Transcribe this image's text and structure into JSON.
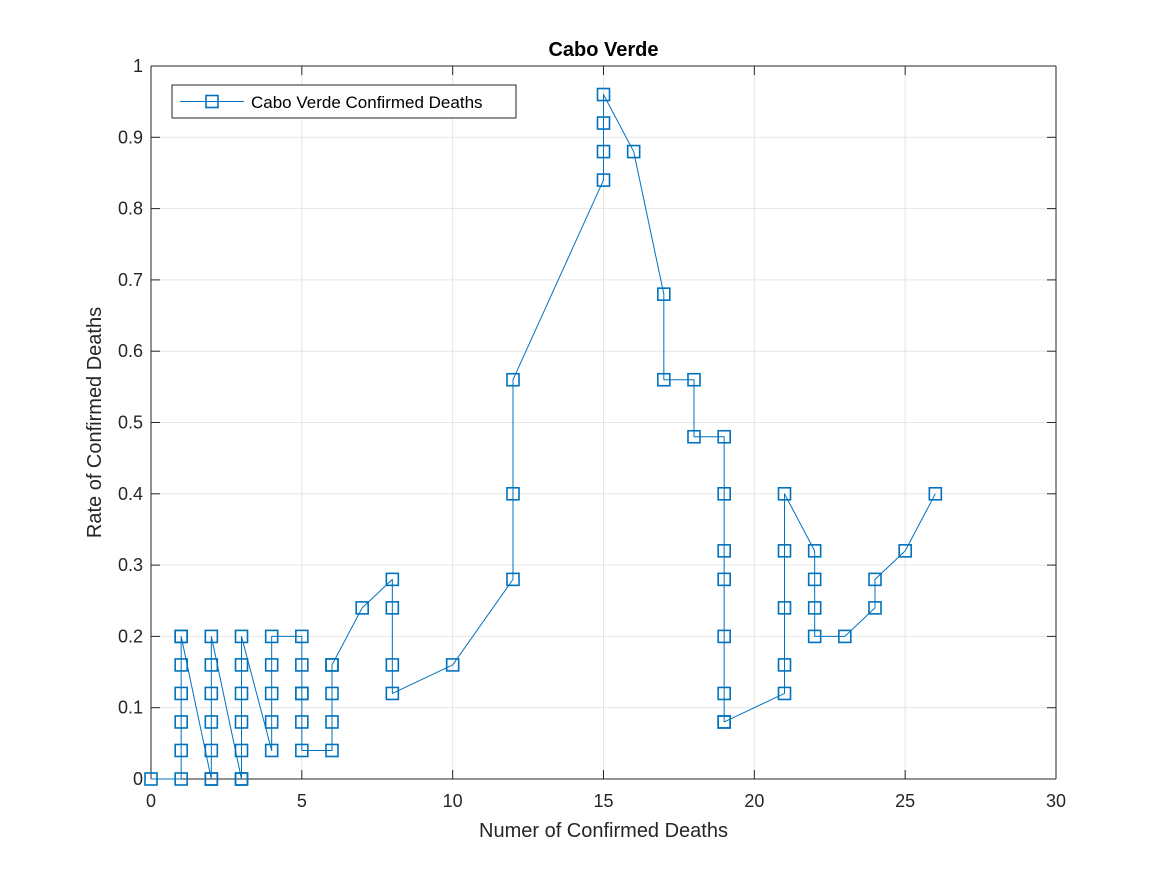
{
  "chart_data": {
    "type": "line",
    "title": "Cabo Verde",
    "xlabel": "Numer of Confirmed Deaths",
    "ylabel": "Rate of Confirmed Deaths",
    "xlim": [
      0,
      30
    ],
    "ylim": [
      0,
      1
    ],
    "xticks": [
      0,
      5,
      10,
      15,
      20,
      25,
      30
    ],
    "yticks": [
      0,
      0.1,
      0.2,
      0.3,
      0.4,
      0.5,
      0.6,
      0.7,
      0.8,
      0.9,
      1
    ],
    "xtick_labels": [
      "0",
      "5",
      "10",
      "15",
      "20",
      "25",
      "30"
    ],
    "ytick_labels": [
      "0",
      "0.1",
      "0.2",
      "0.3",
      "0.4",
      "0.5",
      "0.6",
      "0.7",
      "0.8",
      "0.9",
      "1"
    ],
    "grid": true,
    "legend_location": "top-left",
    "colors": {
      "series": "#0072BD",
      "grid": "#e6e6e6",
      "axis": "#262626"
    },
    "series": [
      {
        "name": "Cabo Verde Confirmed Deaths",
        "marker": "square",
        "x": [
          0,
          1,
          1,
          1,
          1,
          1,
          1,
          1,
          2,
          2,
          2,
          2,
          2,
          2,
          2,
          3,
          3,
          3,
          3,
          3,
          3,
          3,
          4,
          4,
          4,
          4,
          4,
          5,
          5,
          5,
          5,
          5,
          5,
          6,
          6,
          6,
          6,
          6,
          7,
          8,
          8,
          8,
          8,
          10,
          12,
          12,
          12,
          15,
          15,
          15,
          15,
          16,
          17,
          17,
          18,
          18,
          19,
          19,
          19,
          19,
          19,
          19,
          19,
          19,
          21,
          21,
          21,
          21,
          21,
          22,
          22,
          22,
          22,
          23,
          24,
          24,
          25,
          26
        ],
        "y": [
          0,
          0,
          0.04,
          0.08,
          0.12,
          0.16,
          0.2,
          0.2,
          0,
          0,
          0.04,
          0.08,
          0.12,
          0.16,
          0.2,
          0,
          0,
          0.04,
          0.08,
          0.12,
          0.16,
          0.2,
          0.04,
          0.08,
          0.12,
          0.16,
          0.2,
          0.2,
          0.16,
          0.12,
          0.12,
          0.08,
          0.04,
          0.04,
          0.08,
          0.12,
          0.16,
          0.16,
          0.24,
          0.28,
          0.24,
          0.16,
          0.12,
          0.16,
          0.28,
          0.4,
          0.56,
          0.84,
          0.88,
          0.92,
          0.96,
          0.88,
          0.68,
          0.56,
          0.56,
          0.48,
          0.48,
          0.4,
          0.32,
          0.28,
          0.2,
          0.12,
          0.08,
          0.08,
          0.12,
          0.16,
          0.24,
          0.32,
          0.4,
          0.32,
          0.28,
          0.24,
          0.2,
          0.2,
          0.24,
          0.28,
          0.32,
          0.4
        ]
      }
    ]
  }
}
